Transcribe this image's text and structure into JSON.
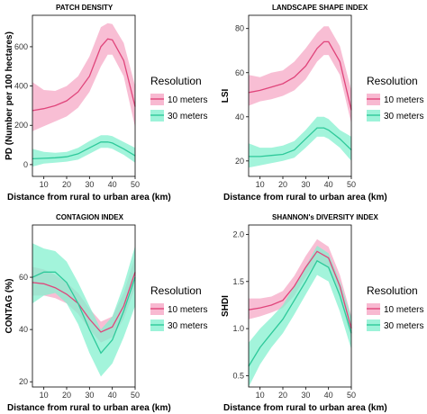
{
  "colors": {
    "series_10m": "#e0457b",
    "band_10m": "#f6a8c6",
    "series_30m": "#2ec99a",
    "band_30m": "#84f0cf"
  },
  "chart_data": [
    {
      "type": "line",
      "title": "PATCH DENSITY",
      "xlabel": "Distance from rural to urban area (km)",
      "ylabel": "PD (Number per 100 hectares)",
      "xlim": [
        5,
        50
      ],
      "ylim": [
        -60,
        760
      ],
      "xticks": [
        10,
        20,
        30,
        40,
        50
      ],
      "yticks": [
        0,
        200,
        400,
        600
      ],
      "legend": {
        "title": "Resolution",
        "position": "right"
      },
      "series": [
        {
          "name": "10 meters",
          "x": [
            5,
            10,
            15,
            20,
            25,
            30,
            35,
            38,
            40,
            45,
            50
          ],
          "y": [
            275,
            285,
            300,
            325,
            370,
            450,
            600,
            640,
            635,
            530,
            295
          ],
          "lower": [
            170,
            195,
            220,
            245,
            290,
            370,
            500,
            560,
            560,
            450,
            190
          ],
          "upper": [
            420,
            380,
            375,
            400,
            450,
            550,
            700,
            720,
            715,
            620,
            400
          ]
        },
        {
          "name": "30 meters",
          "x": [
            5,
            10,
            15,
            20,
            25,
            30,
            35,
            38,
            40,
            45,
            50
          ],
          "y": [
            30,
            32,
            35,
            40,
            55,
            85,
            115,
            115,
            110,
            80,
            45
          ],
          "lower": [
            -10,
            5,
            10,
            15,
            25,
            55,
            85,
            85,
            80,
            50,
            10
          ],
          "upper": [
            80,
            65,
            60,
            65,
            85,
            120,
            150,
            150,
            145,
            115,
            85
          ]
        }
      ]
    },
    {
      "type": "line",
      "title": "LANDSCAPE SHAPE INDEX",
      "xlabel": "Distance from rural to urban area (km)",
      "ylabel": "LSI",
      "xlim": [
        5,
        50
      ],
      "ylim": [
        13,
        86
      ],
      "xticks": [
        10,
        20,
        30,
        40,
        50
      ],
      "yticks": [
        20,
        40,
        60,
        80
      ],
      "legend": {
        "title": "Resolution",
        "position": "right"
      },
      "series": [
        {
          "name": "10 meters",
          "x": [
            5,
            10,
            15,
            20,
            25,
            30,
            35,
            38,
            40,
            45,
            50
          ],
          "y": [
            51,
            52,
            53.5,
            55,
            58,
            63,
            71,
            74,
            74,
            65,
            43
          ],
          "lower": [
            45,
            47,
            48,
            49.5,
            52,
            57,
            65,
            68,
            68,
            59,
            37
          ],
          "upper": [
            59,
            58,
            60,
            61,
            65,
            71,
            78,
            81,
            81,
            72,
            52
          ]
        },
        {
          "name": "30 meters",
          "x": [
            5,
            10,
            15,
            20,
            25,
            30,
            35,
            38,
            40,
            45,
            50
          ],
          "y": [
            22,
            22,
            22.5,
            23,
            25,
            30,
            35,
            35,
            34,
            30,
            25
          ],
          "lower": [
            17,
            18,
            19,
            20,
            21.5,
            26,
            31,
            31,
            30,
            26,
            20
          ],
          "upper": [
            28,
            26,
            26,
            27,
            29,
            34,
            40,
            40,
            39,
            34,
            31
          ]
        }
      ]
    },
    {
      "type": "line",
      "title": "CONTAGION INDEX",
      "xlabel": "Distance from rural to urban area (km)",
      "ylabel": "CONTAG (%)",
      "xlim": [
        5,
        50
      ],
      "ylim": [
        18,
        80
      ],
      "xticks": [
        10,
        20,
        30,
        40,
        50
      ],
      "yticks": [
        20,
        40,
        60
      ],
      "legend": {
        "title": "Resolution",
        "position": "right"
      },
      "series": [
        {
          "name": "10 meters",
          "x": [
            5,
            10,
            15,
            20,
            25,
            30,
            35,
            40,
            45,
            50
          ],
          "y": [
            58,
            57.5,
            56,
            53.5,
            50,
            44,
            39,
            41,
            49,
            62
          ],
          "lower": [
            53,
            53,
            52,
            50,
            46,
            40,
            35,
            37,
            44,
            56
          ],
          "upper": [
            64,
            63,
            61,
            58,
            54,
            48,
            43,
            45,
            54,
            68
          ]
        },
        {
          "name": "30 meters",
          "x": [
            5,
            10,
            15,
            20,
            25,
            30,
            35,
            40,
            45,
            50
          ],
          "y": [
            60,
            62,
            62,
            58,
            50,
            40,
            31,
            36,
            47,
            60
          ],
          "lower": [
            50,
            53,
            54,
            50,
            42,
            31,
            22,
            27,
            37,
            49
          ],
          "upper": [
            73,
            71,
            70,
            66,
            58,
            49,
            40,
            45,
            57,
            72
          ]
        }
      ]
    },
    {
      "type": "line",
      "title": "SHANNON's DIVERSITY INDEX",
      "xlabel": "Distance from rural to urban area (km)",
      "ylabel": "SHDI",
      "xlim": [
        5,
        50
      ],
      "ylim": [
        0.38,
        2.1
      ],
      "xticks": [
        10,
        20,
        30,
        40,
        50
      ],
      "yticks": [
        0.5,
        1.0,
        1.5,
        2.0
      ],
      "ytick_labels": [
        "0.5",
        "1.0",
        "1.5",
        "2.0"
      ],
      "legend": {
        "title": "Resolution",
        "position": "right"
      },
      "series": [
        {
          "name": "10 meters",
          "x": [
            5,
            10,
            15,
            20,
            25,
            30,
            35,
            40,
            45,
            50
          ],
          "y": [
            1.2,
            1.22,
            1.25,
            1.3,
            1.45,
            1.65,
            1.82,
            1.75,
            1.45,
            1.0
          ],
          "lower": [
            1.1,
            1.13,
            1.17,
            1.22,
            1.35,
            1.55,
            1.72,
            1.65,
            1.35,
            0.88
          ],
          "upper": [
            1.32,
            1.32,
            1.34,
            1.4,
            1.56,
            1.77,
            1.95,
            1.87,
            1.57,
            1.13
          ]
        },
        {
          "name": "30 meters",
          "x": [
            5,
            10,
            15,
            20,
            25,
            30,
            35,
            40,
            45,
            50
          ],
          "y": [
            0.6,
            0.8,
            0.95,
            1.1,
            1.3,
            1.5,
            1.72,
            1.65,
            1.35,
            0.95
          ],
          "lower": [
            0.38,
            0.62,
            0.8,
            0.95,
            1.15,
            1.36,
            1.57,
            1.5,
            1.18,
            0.78
          ],
          "upper": [
            0.85,
            1.0,
            1.12,
            1.25,
            1.45,
            1.66,
            1.88,
            1.8,
            1.5,
            1.12
          ]
        }
      ]
    }
  ]
}
